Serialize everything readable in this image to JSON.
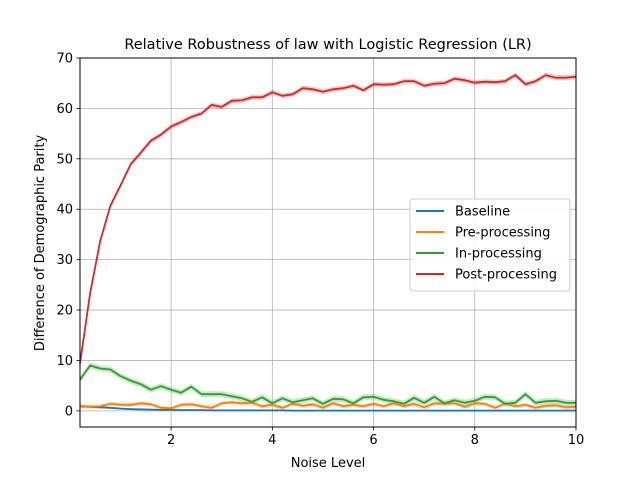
{
  "chart_data": {
    "type": "line",
    "title": "Relative Robustness of law with Logistic Regression (LR)",
    "xlabel": "Noise Level",
    "ylabel": "Difference of Demographic Parity",
    "xlim": [
      0.2,
      10
    ],
    "ylim": [
      -3.2,
      70
    ],
    "xticks": [
      2,
      4,
      6,
      8,
      10
    ],
    "xtick_labels": [
      "2",
      "4",
      "6",
      "8",
      "10"
    ],
    "yticks": [
      0,
      10,
      20,
      30,
      40,
      50,
      60,
      70
    ],
    "ytick_labels": [
      "0",
      "10",
      "20",
      "30",
      "40",
      "50",
      "60",
      "70"
    ],
    "grid": true,
    "legend_position": "center-right",
    "x": [
      0.2,
      0.4,
      0.6,
      0.8,
      1.0,
      1.2,
      1.4,
      1.6,
      1.8,
      2.0,
      2.2,
      2.4,
      2.6,
      2.8,
      3.0,
      3.2,
      3.4,
      3.6,
      3.8,
      4.0,
      4.2,
      4.4,
      4.6,
      4.8,
      5.0,
      5.2,
      5.4,
      5.6,
      5.8,
      6.0,
      6.2,
      6.4,
      6.6,
      6.8,
      7.0,
      7.2,
      7.4,
      7.6,
      7.8,
      8.0,
      8.2,
      8.4,
      8.6,
      8.8,
      9.0,
      9.2,
      9.4,
      9.6,
      9.8,
      10.0
    ],
    "series": [
      {
        "name": "Baseline",
        "color": "#1f77b4",
        "band": 0.2,
        "values": [
          0.9,
          0.8,
          0.7,
          0.6,
          0.45,
          0.35,
          0.3,
          0.25,
          0.2,
          0.2,
          0.15,
          0.15,
          0.15,
          0.1,
          0.1,
          0.1,
          0.1,
          0.1,
          0.1,
          0.1,
          0.1,
          0.05,
          0.05,
          0.05,
          0.05,
          0.05,
          0.05,
          0.05,
          0.05,
          0.05,
          0.05,
          0.05,
          0.05,
          0.05,
          0.05,
          0.05,
          0.05,
          0.05,
          0.05,
          0.05,
          0.05,
          0.05,
          0.05,
          0.05,
          0.05,
          0.05,
          0.05,
          0.05,
          0.05,
          0.05
        ]
      },
      {
        "name": "Pre-processing",
        "color": "#ff7f0e",
        "band": 0.4,
        "values": [
          1.0,
          0.8,
          0.9,
          1.4,
          1.2,
          1.2,
          1.5,
          1.3,
          0.6,
          0.5,
          1.2,
          1.3,
          0.9,
          0.6,
          1.5,
          1.7,
          1.5,
          1.6,
          0.9,
          1.2,
          0.6,
          1.4,
          1.0,
          1.3,
          0.6,
          1.5,
          0.9,
          1.2,
          0.9,
          1.4,
          0.9,
          1.5,
          0.9,
          1.4,
          0.7,
          1.5,
          1.4,
          1.5,
          0.8,
          1.5,
          1.4,
          0.6,
          1.4,
          0.9,
          1.2,
          0.6,
          1.0,
          1.1,
          0.7,
          0.8
        ]
      },
      {
        "name": "In-processing",
        "color": "#2ca02c",
        "band": 0.6,
        "values": [
          6.2,
          9.0,
          8.4,
          8.2,
          6.9,
          6.0,
          5.3,
          4.2,
          4.9,
          4.2,
          3.6,
          4.8,
          3.3,
          3.3,
          3.3,
          2.9,
          2.5,
          1.8,
          2.7,
          1.5,
          2.5,
          1.7,
          2.1,
          2.5,
          1.4,
          2.4,
          2.3,
          1.5,
          2.7,
          2.8,
          2.2,
          1.9,
          1.4,
          2.6,
          1.6,
          2.8,
          1.5,
          2.1,
          1.6,
          2.0,
          2.8,
          2.7,
          1.4,
          1.6,
          3.3,
          1.6,
          1.9,
          2.0,
          1.6,
          1.6
        ]
      },
      {
        "name": "Post-processing",
        "color": "#d62728",
        "band": 0.5,
        "values": [
          9.4,
          23.3,
          33.7,
          40.7,
          44.7,
          48.9,
          51.2,
          53.6,
          54.8,
          56.4,
          57.3,
          58.3,
          59.0,
          60.7,
          60.3,
          61.5,
          61.6,
          62.2,
          62.2,
          63.2,
          62.5,
          62.8,
          64.0,
          63.8,
          63.3,
          63.8,
          64.0,
          64.5,
          63.6,
          64.8,
          64.7,
          64.8,
          65.4,
          65.4,
          64.5,
          64.9,
          65.0,
          65.9,
          65.6,
          65.1,
          65.3,
          65.2,
          65.4,
          66.6,
          64.8,
          65.4,
          66.6,
          66.1,
          66.1,
          66.3
        ]
      }
    ]
  }
}
